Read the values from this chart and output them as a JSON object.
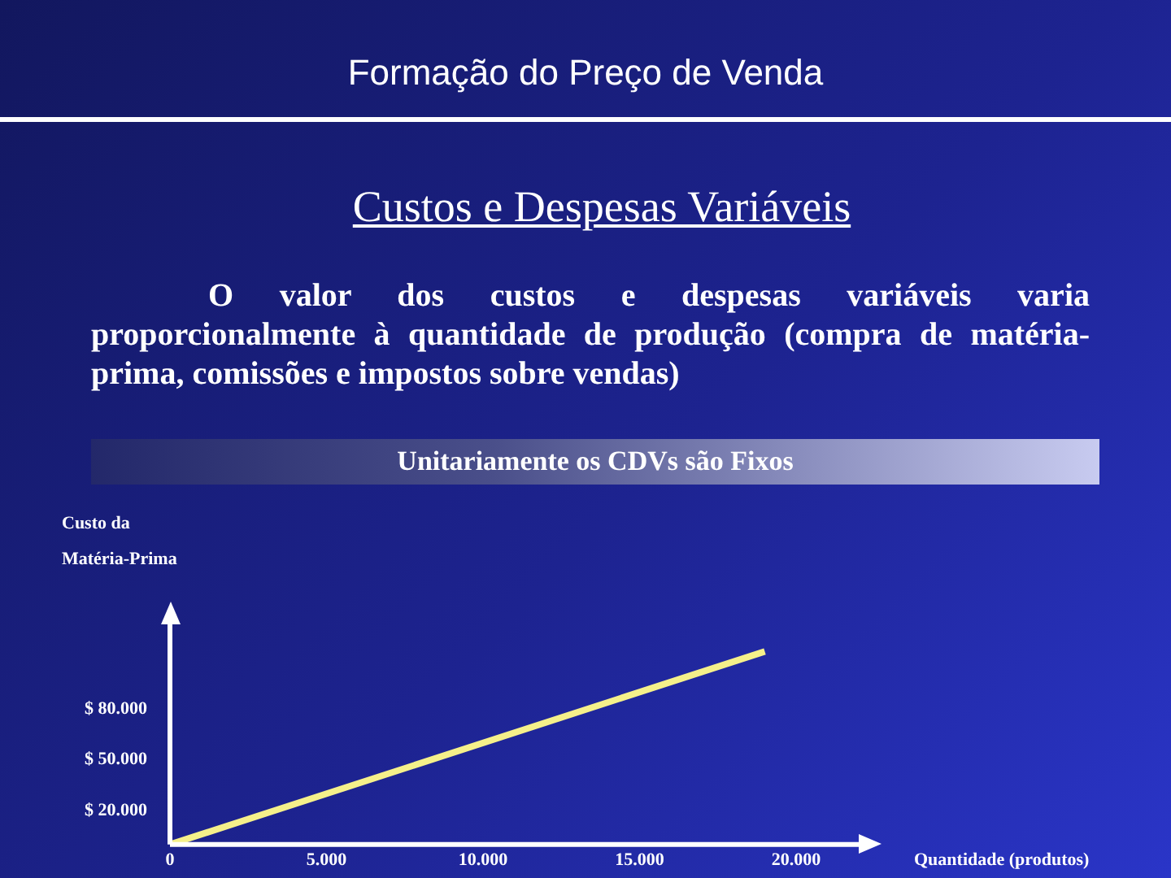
{
  "chart_data": {
    "type": "line",
    "title": "Formação do Preço de Venda",
    "subtitle": "Custos e Despesas Variáveis",
    "annotations": [
      "O valor dos custos e despesas variáveis varia proporcionalmente à quantidade de produção (compra de matéria-prima, comissões e impostos sobre vendas)",
      "Unitariamente os CDVs são Fixos"
    ],
    "ylabel": "Custo da Matéria-Prima",
    "xlabel": "Quantidade (produtos)",
    "series": [
      {
        "color": "#f5f08a",
        "x": [
          0,
          19000
        ],
        "values": [
          0,
          114000
        ]
      }
    ],
    "xlim": [
      0,
      22000
    ],
    "xticks": [
      0,
      {
        "value": 5000,
        "label": "5.000"
      },
      {
        "value": 10000,
        "label": "10.000"
      },
      {
        "value": 15000,
        "label": "15.000"
      },
      {
        "value": 20000,
        "label": "20.000"
      }
    ],
    "ylim": [
      0,
      130000
    ],
    "yticks": [
      {
        "value": 20000,
        "label": "$ 20.000"
      },
      {
        "value": 50000,
        "label": "$ 50.000"
      },
      {
        "value": 80000,
        "label": "$ 80.000"
      }
    ],
    "grid": false,
    "legend": false,
    "marker": "none",
    "line_style": "solid"
  }
}
